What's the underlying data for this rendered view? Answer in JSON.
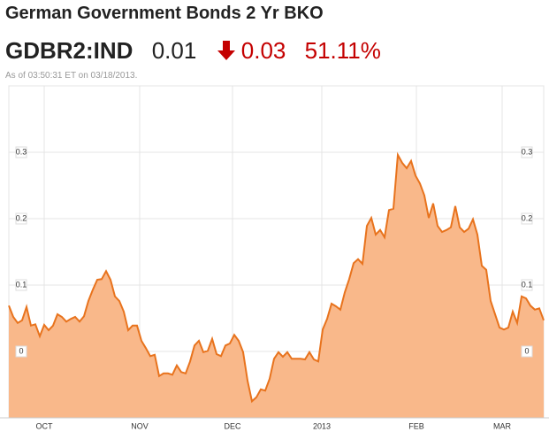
{
  "header": {
    "title": "German Government Bonds 2 Yr BKO",
    "symbol": "GDBR2:IND",
    "price": "0.01",
    "change": "0.03",
    "percent_change": "51.11%",
    "as_of": "As of 03:50:31 ET on 03/18/2013."
  },
  "chart_data": {
    "type": "area",
    "color": "#e8731d",
    "fill": "#f9b88a",
    "grid": true,
    "xlim": [
      0,
      121
    ],
    "xticks": [
      {
        "value": 8,
        "label": "OCT"
      },
      {
        "value": 29.6,
        "label": "NOV"
      },
      {
        "value": 50.6,
        "label": "DEC"
      },
      {
        "value": 70.8,
        "label": "2013"
      },
      {
        "value": 92.2,
        "label": "FEB"
      },
      {
        "value": 111.6,
        "label": "MAR"
      }
    ],
    "ylim": [
      -0.1,
      0.4
    ],
    "yticks": [
      0,
      0.1,
      0.2,
      0.3
    ],
    "values": [
      0.069,
      0.052,
      0.043,
      0.047,
      0.067,
      0.039,
      0.041,
      0.023,
      0.04,
      0.032,
      0.039,
      0.056,
      0.052,
      0.045,
      0.049,
      0.052,
      0.045,
      0.053,
      0.076,
      0.093,
      0.108,
      0.109,
      0.121,
      0.108,
      0.083,
      0.076,
      0.06,
      0.032,
      0.039,
      0.039,
      0.016,
      0.005,
      -0.007,
      -0.005,
      -0.037,
      -0.033,
      -0.033,
      -0.035,
      -0.021,
      -0.031,
      -0.033,
      -0.015,
      0.009,
      0.016,
      -0.001,
      0.001,
      0.019,
      -0.004,
      -0.007,
      0.009,
      0.012,
      0.025,
      0.016,
      -0.001,
      -0.044,
      -0.075,
      -0.069,
      -0.057,
      -0.059,
      -0.041,
      -0.011,
      -0.001,
      -0.008,
      -0.001,
      -0.011,
      -0.011,
      -0.011,
      -0.012,
      -0.001,
      -0.012,
      -0.015,
      0.033,
      0.049,
      0.072,
      0.068,
      0.063,
      0.089,
      0.109,
      0.133,
      0.139,
      0.132,
      0.189,
      0.201,
      0.176,
      0.183,
      0.172,
      0.213,
      0.215,
      0.296,
      0.284,
      0.276,
      0.287,
      0.265,
      0.253,
      0.235,
      0.201,
      0.223,
      0.189,
      0.18,
      0.183,
      0.187,
      0.219,
      0.187,
      0.18,
      0.185,
      0.199,
      0.176,
      0.129,
      0.123,
      0.076,
      0.056,
      0.036,
      0.033,
      0.036,
      0.06,
      0.043,
      0.083,
      0.08,
      0.069,
      0.063,
      0.065,
      0.047
    ]
  }
}
